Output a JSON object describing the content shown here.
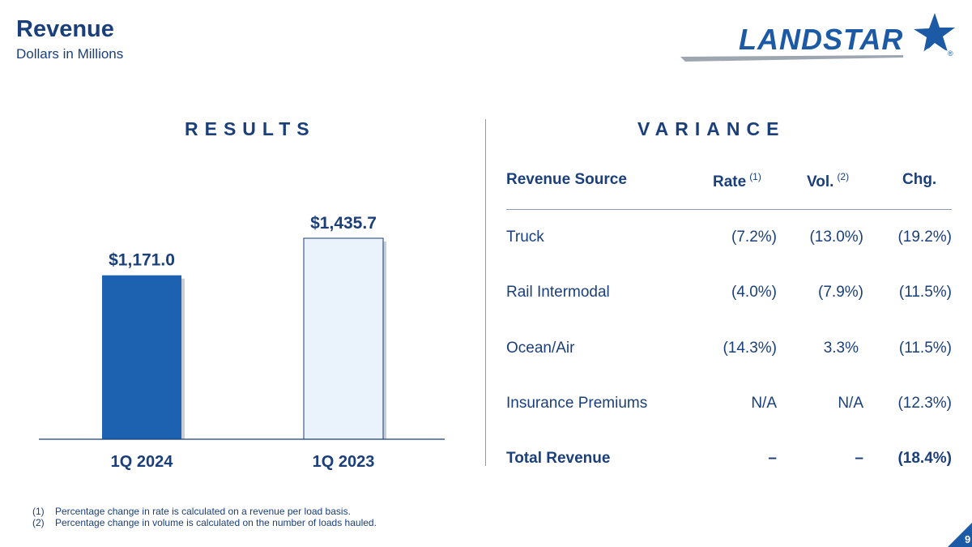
{
  "header": {
    "title": "Revenue",
    "subtitle": "Dollars in Millions",
    "logo_text": "LANDSTAR",
    "logo_reg": "®"
  },
  "colors": {
    "primary_bar": "#1c62b0",
    "secondary_bar": "#eaf2fb",
    "navy": "#1a3f7a",
    "axis": "#1a3f7a"
  },
  "results": {
    "heading": "RESULTS"
  },
  "chart_data": {
    "type": "bar",
    "categories": [
      "1Q 2024",
      "1Q 2023"
    ],
    "values": [
      1171.0,
      1435.7
    ],
    "data_labels": [
      "$1,171.0",
      "$1,435.7"
    ],
    "title": "",
    "xlabel": "",
    "ylabel": "",
    "ylim": [
      0,
      1650
    ],
    "grid": false
  },
  "variance": {
    "heading": "VARIANCE",
    "columns": {
      "source": "Revenue Source",
      "rate": "Rate",
      "rate_note": "(1)",
      "vol": "Vol.",
      "vol_note": "(2)",
      "chg": "Chg."
    },
    "rows": [
      {
        "source": "Truck",
        "rate": "(7.2%)",
        "vol": "(13.0%)",
        "chg": "(19.2%)"
      },
      {
        "source": "Rail Intermodal",
        "rate": "(4.0%)",
        "vol": "(7.9%)",
        "chg": "(11.5%)"
      },
      {
        "source": "Ocean/Air",
        "rate": "(14.3%)",
        "vol": "3.3%",
        "chg": "(11.5%)"
      },
      {
        "source": "Insurance Premiums",
        "rate": "N/A",
        "vol": "N/A",
        "chg": "(12.3%)"
      }
    ],
    "total": {
      "source": "Total Revenue",
      "rate": "–",
      "vol": "–",
      "chg": "(18.4%)"
    }
  },
  "footnotes": [
    {
      "num": "(1)",
      "text": "Percentage change in rate is calculated on a revenue per load basis."
    },
    {
      "num": "(2)",
      "text": "Percentage change in volume is calculated on the number of loads hauled."
    }
  ],
  "page_number": "9"
}
